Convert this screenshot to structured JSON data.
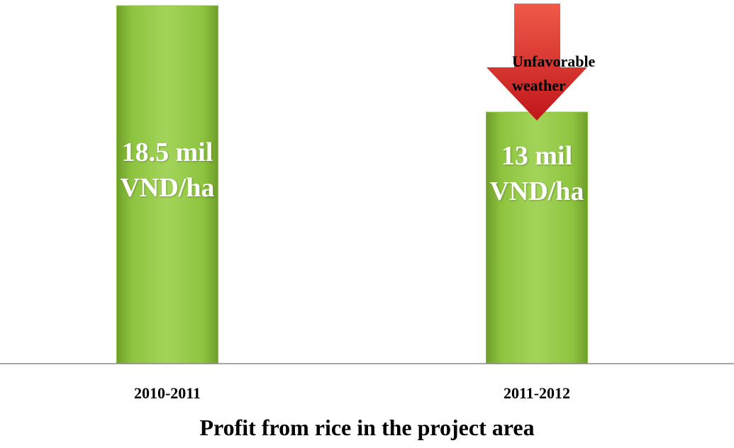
{
  "chart_data": {
    "type": "bar",
    "title": "Profit from rice in the project area",
    "categories": [
      "2010-2011",
      "2011-2012"
    ],
    "values": [
      18.5,
      13
    ],
    "value_labels": [
      "18.5 mil VND/ha",
      "13 mil VND/ha"
    ],
    "color": "#8dc43f",
    "annotation": "Unfavorable weather"
  }
}
